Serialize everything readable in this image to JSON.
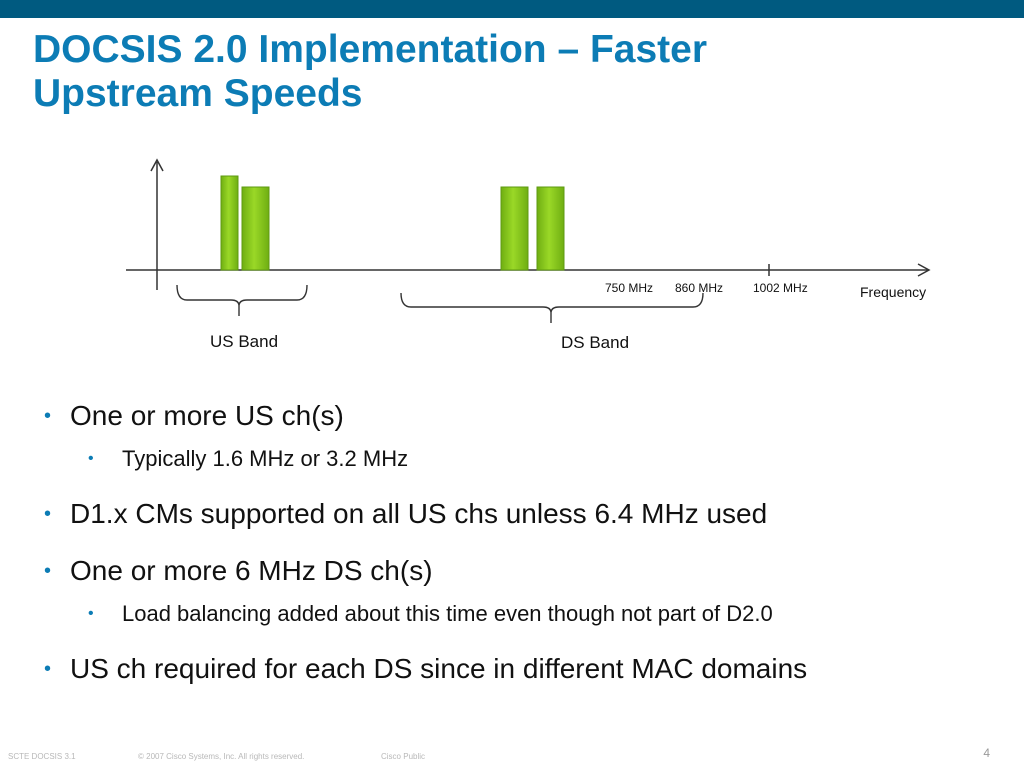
{
  "title_line1": "DOCSIS 2.0 Implementation – Faster",
  "title_line2": "Upstream Speeds",
  "diagram": {
    "freq_labels": [
      "750 MHz",
      "860 MHz",
      "1002 MHz"
    ],
    "axis_label": "Frequency",
    "us_band_label": "US Band",
    "ds_band_label": "DS Band"
  },
  "bullets": [
    {
      "level": 1,
      "text": "One or more US ch(s)"
    },
    {
      "level": 2,
      "text": "Typically 1.6 MHz or 3.2 MHz"
    },
    {
      "level": 1,
      "text": "D1.x CMs supported on all US chs unless 6.4 MHz used"
    },
    {
      "level": 1,
      "text": "One or more 6 MHz DS ch(s)"
    },
    {
      "level": 2,
      "text": "Load balancing added about this time even though not part of D2.0"
    },
    {
      "level": 1,
      "text": "US ch required for each DS since in different MAC domains"
    }
  ],
  "footer": {
    "course": "SCTE DOCSIS 3.1",
    "copyright": "© 2007 Cisco Systems, Inc. All rights reserved.",
    "classification": "Cisco Public",
    "page_number": "4"
  },
  "colors": {
    "top_bar": "#005a80",
    "title": "#0c7cb5",
    "channel_fill": "#8ccf1c",
    "bullet": "#0c7cb5"
  }
}
